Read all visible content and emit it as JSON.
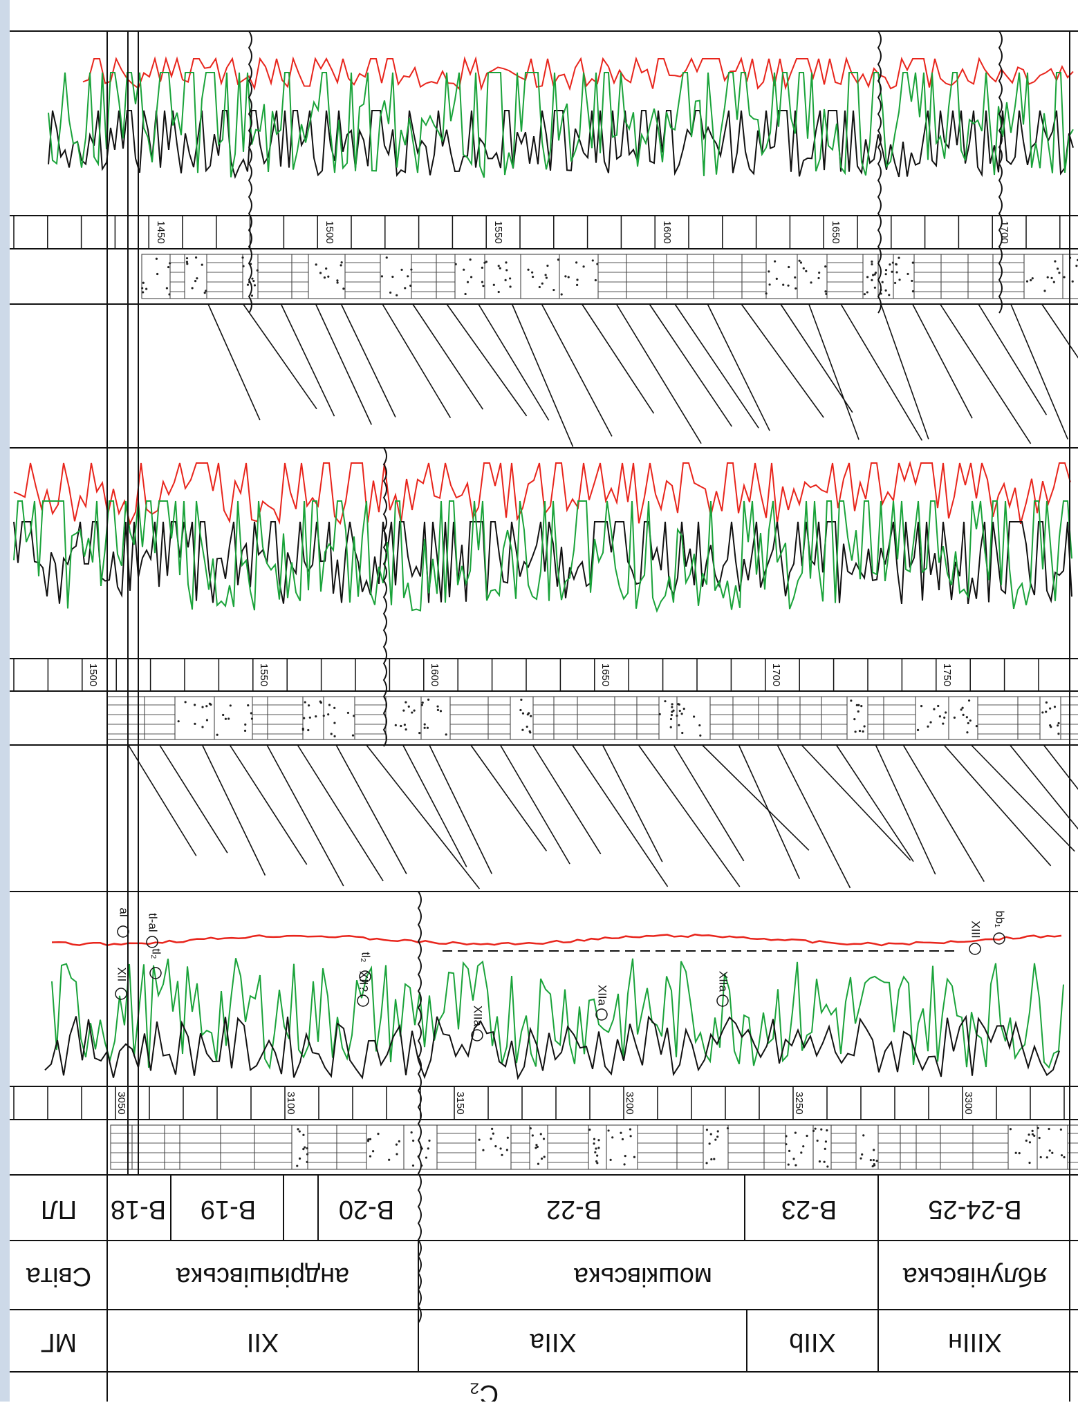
{
  "orientation": "rotated 180 degrees (image printed upside-down)",
  "colors": {
    "curve_a": "#e8251c",
    "curve_b": "#111111",
    "curve_c": "#1aa33a",
    "grid": "#111111",
    "background": "#ffffff",
    "margin_shade": "#cdd9e8"
  },
  "row_headers": {
    "pl": "ПЛ",
    "svita": "Світа",
    "mg": "МГ",
    "bottom_fragment": "С₂"
  },
  "svita_bands": [
    {
      "label": "андріяшівська"
    },
    {
      "label": "мошківська"
    },
    {
      "label": "яблунівська"
    }
  ],
  "mg_bands": [
    {
      "label": "XII"
    },
    {
      "label": "XIIa"
    },
    {
      "label": "XIIb"
    },
    {
      "label": "XIIIн"
    }
  ],
  "pl_bands": [
    {
      "label": "В-18"
    },
    {
      "label": "В-19"
    },
    {
      "label": "В-20"
    },
    {
      "label": "В-22"
    },
    {
      "label": "В-23"
    },
    {
      "label": "В-24-25"
    }
  ],
  "wells": [
    {
      "name": "well-1",
      "depth_ticks": [
        "3050",
        "3100",
        "3150",
        "3200",
        "3250",
        "3300"
      ],
      "markers": [
        "XII",
        "al",
        "tl₂",
        "tl-al",
        "XII?",
        "tl₂",
        "XIIa",
        "XIIa",
        "XIIa",
        "XIII",
        "bb₁"
      ]
    },
    {
      "name": "well-2",
      "depth_ticks": [
        "1500",
        "1550",
        "1600",
        "1650",
        "1700",
        "1750"
      ]
    },
    {
      "name": "well-3",
      "depth_ticks": [
        "1450",
        "1500",
        "1550",
        "1600",
        "1650",
        "1700"
      ]
    }
  ]
}
